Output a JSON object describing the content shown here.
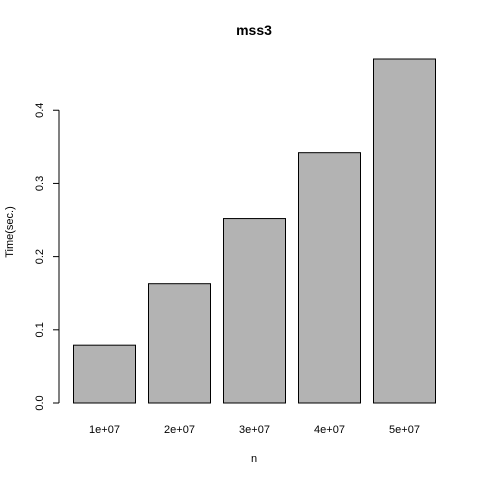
{
  "chart_data": {
    "type": "bar",
    "title": "mss3",
    "xlabel": "n",
    "ylabel": "Time(sec.)",
    "categories": [
      "1e+07",
      "2e+07",
      "3e+07",
      "4e+07",
      "5e+07"
    ],
    "values": [
      0.079,
      0.163,
      0.252,
      0.342,
      0.47
    ],
    "ylim": [
      0,
      0.47
    ],
    "yticks": [
      0.0,
      0.1,
      0.2,
      0.3,
      0.4
    ],
    "ytick_labels": [
      "0.0",
      "0.1",
      "0.2",
      "0.3",
      "0.4"
    ],
    "bar_color": "#b3b3b3",
    "bar_edge_color": "#000000",
    "grid": false,
    "legend": "none"
  }
}
